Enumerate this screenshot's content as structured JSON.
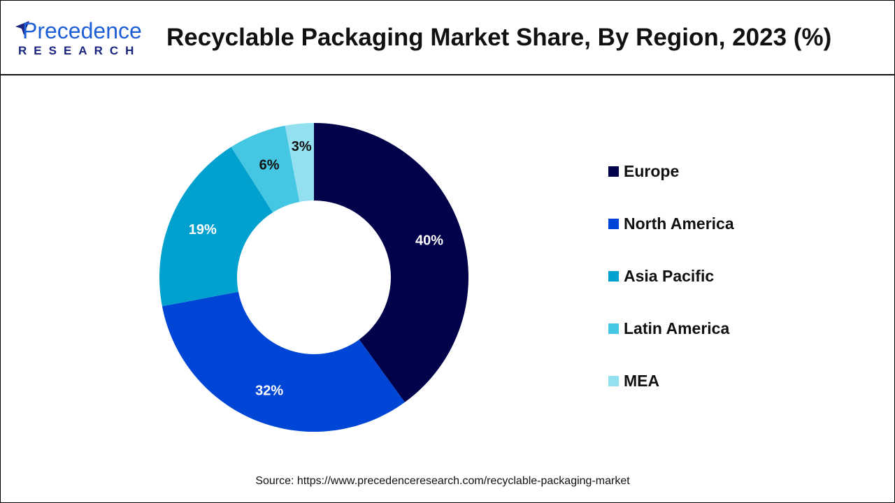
{
  "header": {
    "logo_text": "Precedence",
    "logo_subtext": "RESEARCH",
    "title": "Recyclable Packaging Market Share, By Region, 2023 (%)"
  },
  "chart_data": {
    "type": "pie",
    "variant": "donut",
    "title": "Recyclable Packaging Market Share, By Region, 2023 (%)",
    "categories": [
      "Europe",
      "North America",
      "Asia Pacific",
      "Latin America",
      "MEA"
    ],
    "values": [
      40,
      32,
      19,
      6,
      3
    ],
    "labels": [
      "40%",
      "32%",
      "19%",
      "6%",
      "3%"
    ],
    "colors": [
      "#02024a",
      "#0046d6",
      "#00a0cf",
      "#45c7e3",
      "#93e0f1"
    ],
    "label_colors": [
      "#ffffff",
      "#ffffff",
      "#ffffff",
      "#111111",
      "#111111"
    ],
    "legend_position": "right"
  },
  "source": "Source: https://www.precedenceresearch.com/recyclable-packaging-market"
}
